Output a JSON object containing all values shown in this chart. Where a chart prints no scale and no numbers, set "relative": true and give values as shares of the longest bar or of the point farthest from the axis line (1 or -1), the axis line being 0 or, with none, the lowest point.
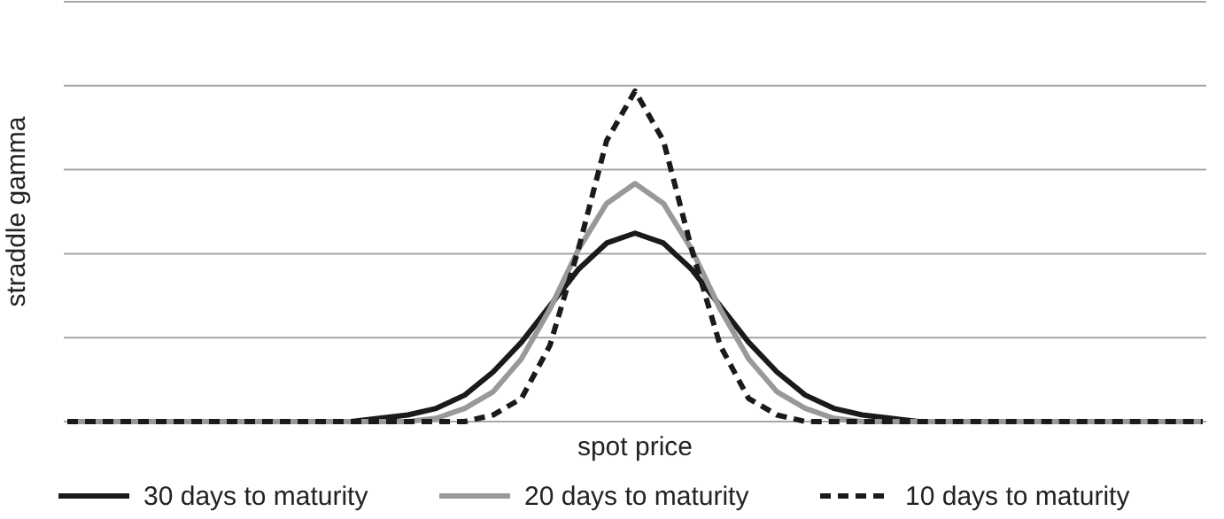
{
  "chart_data": {
    "type": "line",
    "relative": true,
    "xlabel": "spot price",
    "ylabel": "straddle gamma",
    "grid": "y",
    "legend": "bottom",
    "marker": "none",
    "categories": [
      null,
      null,
      null,
      null,
      null,
      null,
      null,
      null,
      null,
      null,
      null,
      null,
      null,
      null,
      null,
      null,
      null,
      null,
      null,
      null,
      null,
      null,
      null,
      null,
      null,
      null,
      null,
      null,
      null,
      null,
      null,
      null,
      null,
      null,
      null,
      null,
      null,
      null,
      null,
      null,
      null
    ],
    "series": [
      {
        "name": "30 days to maturity",
        "color": "#1a1a1a",
        "line_style": "solid",
        "values": [
          0,
          0,
          0,
          0,
          0,
          0,
          0,
          0,
          0,
          0,
          0,
          0.01,
          0.02,
          0.04,
          0.08,
          0.15,
          0.24,
          0.35,
          0.46,
          0.54,
          0.57,
          0.54,
          0.46,
          0.35,
          0.24,
          0.15,
          0.08,
          0.04,
          0.02,
          0.01,
          0,
          0,
          0,
          0,
          0,
          0,
          0,
          0,
          0,
          0,
          0
        ]
      },
      {
        "name": "20 days to maturity",
        "color": "#999999",
        "line_style": "solid",
        "values": [
          0,
          0,
          0,
          0,
          0,
          0,
          0,
          0,
          0,
          0,
          0,
          0,
          0,
          0.01,
          0.04,
          0.09,
          0.19,
          0.34,
          0.52,
          0.66,
          0.72,
          0.66,
          0.52,
          0.34,
          0.19,
          0.09,
          0.04,
          0.01,
          0,
          0,
          0,
          0,
          0,
          0,
          0,
          0,
          0,
          0,
          0,
          0,
          0
        ]
      },
      {
        "name": "10 days to maturity",
        "color": "#1a1a1a",
        "line_style": "dashed",
        "values": [
          0,
          0,
          0,
          0,
          0,
          0,
          0,
          0,
          0,
          0,
          0,
          0,
          0,
          0,
          0,
          0.02,
          0.07,
          0.23,
          0.52,
          0.85,
          1,
          0.85,
          0.52,
          0.23,
          0.07,
          0.02,
          0,
          0,
          0,
          0,
          0,
          0,
          0,
          0,
          0,
          0,
          0,
          0,
          0,
          0,
          0
        ]
      }
    ]
  }
}
